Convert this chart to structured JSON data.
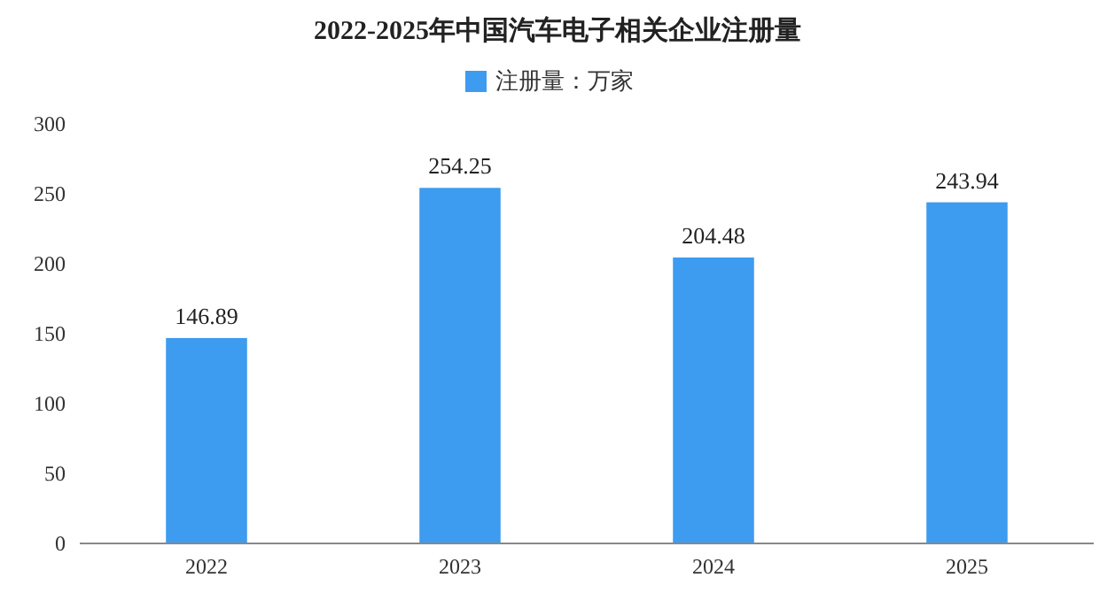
{
  "chart_data": {
    "type": "bar",
    "title": "2022-2025年中国汽车电子相关企业注册量",
    "categories": [
      "2022",
      "2023",
      "2024",
      "2025"
    ],
    "series": [
      {
        "name": "注册量：万家",
        "color": "#3d9bf0",
        "values": [
          146.89,
          254.25,
          204.48,
          243.94
        ]
      }
    ],
    "ylim": [
      0,
      300
    ],
    "yticks": [
      0,
      50,
      100,
      150,
      200,
      250,
      300
    ],
    "data_labels": true,
    "legend": "top"
  }
}
